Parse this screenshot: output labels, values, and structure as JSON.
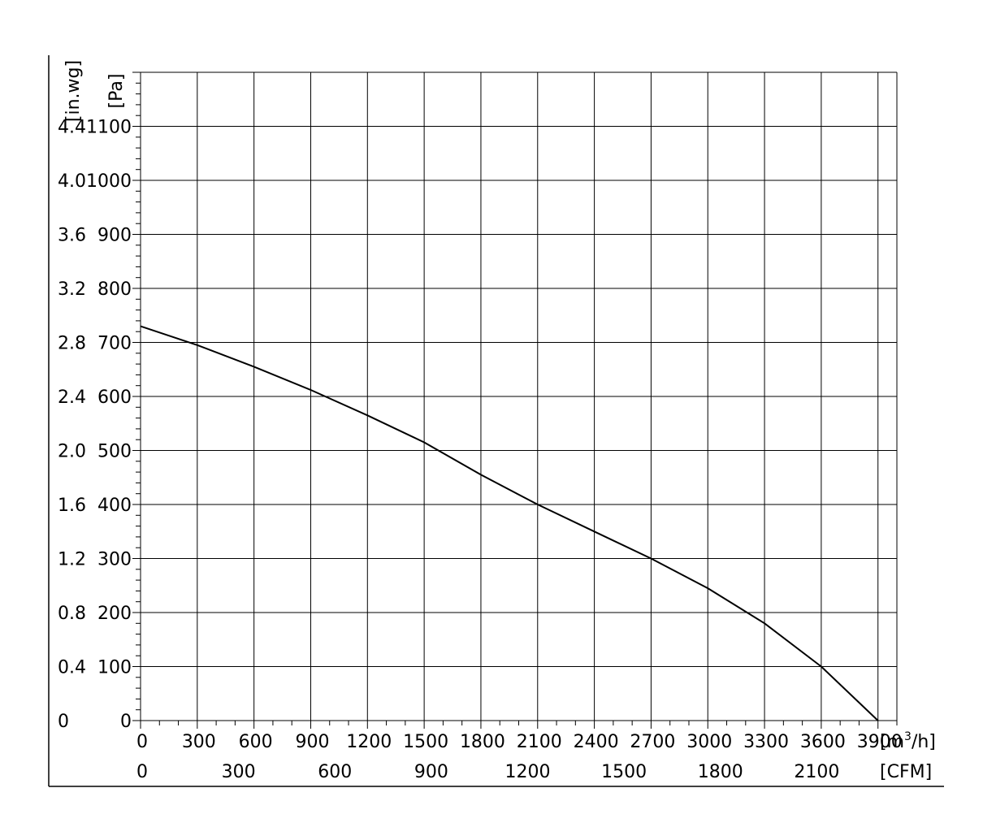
{
  "chart_data": {
    "type": "line",
    "grid": true,
    "x_primary": {
      "unit_prefix": "[m",
      "unit_sup": "3",
      "unit_suffix": "/h]",
      "range": [
        0,
        4000
      ],
      "ticks": [
        0,
        300,
        600,
        900,
        1200,
        1500,
        1800,
        2100,
        2400,
        2700,
        3000,
        3300,
        3600,
        3900
      ],
      "tick_labels": [
        "0",
        "300",
        "600",
        "900",
        "1200",
        "1500",
        "1800",
        "2100",
        "2400",
        "2700",
        "3000",
        "3300",
        "3600",
        "3900"
      ]
    },
    "x_secondary": {
      "unit": "[CFM]",
      "ticks": [
        0,
        300,
        600,
        900,
        1200,
        1500,
        1800,
        2100
      ],
      "tick_labels": [
        "0",
        "300",
        "600",
        "900",
        "1200",
        "1500",
        "1800",
        "2100"
      ]
    },
    "y_primary": {
      "unit": "[Pa]",
      "range": [
        0,
        1200
      ],
      "ticks": [
        0,
        100,
        200,
        300,
        400,
        500,
        600,
        700,
        800,
        900,
        1000,
        1100
      ],
      "tick_labels": [
        "0",
        "100",
        "200",
        "300",
        "400",
        "500",
        "600",
        "700",
        "800",
        "900",
        "1000",
        "1100"
      ]
    },
    "y_secondary": {
      "unit": "[in.wg]",
      "tick_labels": [
        "0",
        "0.4",
        "0.8",
        "1.2",
        "1.6",
        "2.0",
        "2.4",
        "2.8",
        "3.2",
        "3.6",
        "4.0",
        "4.4"
      ]
    },
    "series": [
      {
        "x": [
          0,
          300,
          600,
          900,
          1200,
          1500,
          1800,
          2100,
          2400,
          2700,
          3000,
          3300,
          3600,
          3900
        ],
        "y": [
          730,
          695,
          655,
          612,
          565,
          515,
          455,
          400,
          350,
          300,
          245,
          180,
          100,
          0
        ]
      }
    ]
  }
}
